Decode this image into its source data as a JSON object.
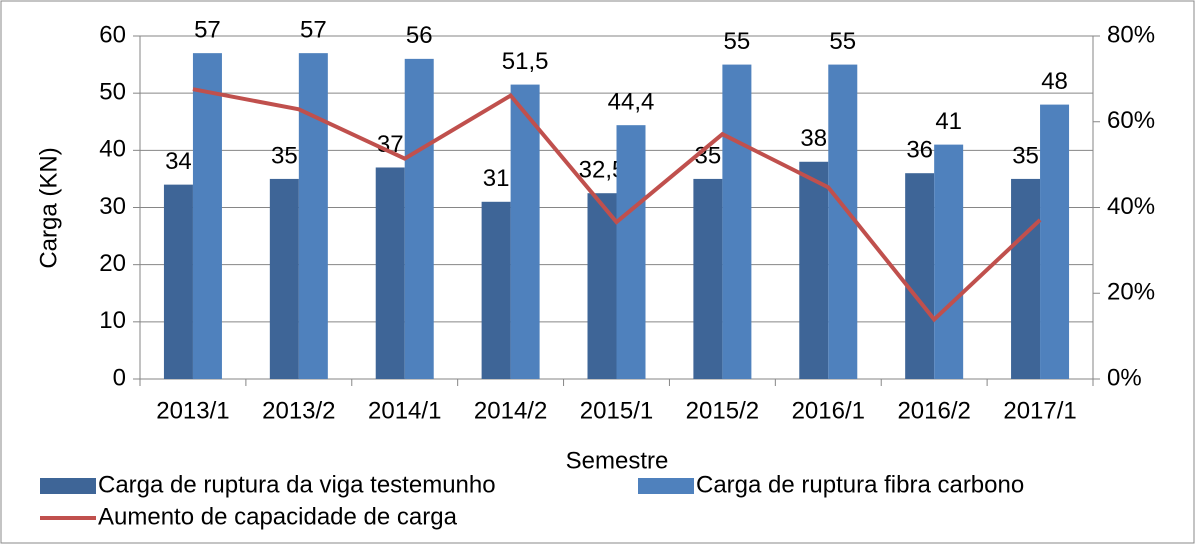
{
  "chart_data": {
    "type": "bar",
    "x_label": "Semestre",
    "y_label": "Carga (KN)",
    "categories": [
      "2013/1",
      "2013/2",
      "2014/1",
      "2014/2",
      "2015/1",
      "2015/2",
      "2016/1",
      "2016/2",
      "2017/1"
    ],
    "series": [
      {
        "name": "Carga de ruptura da viga testemunho",
        "color": "#3e6597",
        "type": "bar",
        "values": [
          34,
          35,
          37,
          31,
          32.5,
          35,
          38,
          36,
          35
        ],
        "value_labels": [
          "34",
          "35",
          "37",
          "31",
          "32,5",
          "35",
          "38",
          "36",
          "35"
        ]
      },
      {
        "name": "Carga de ruptura fibra carbono",
        "color": "#4f81bd",
        "type": "bar",
        "values": [
          57,
          57,
          56,
          51.5,
          44.4,
          55,
          55,
          41,
          48
        ],
        "value_labels": [
          "57",
          "57",
          "56",
          "51,5",
          "44,4",
          "55",
          "55",
          "41",
          "48"
        ]
      },
      {
        "name": "Aumento de capacidade de carga",
        "color": "#c0504d",
        "type": "line",
        "axis": "y2",
        "values": [
          67.6,
          62.9,
          51.4,
          66.1,
          36.6,
          57.1,
          44.7,
          13.9,
          37.1
        ]
      }
    ],
    "ylim": [
      0,
      60
    ],
    "yticks": [
      0,
      10,
      20,
      30,
      40,
      50,
      60
    ],
    "y2lim": [
      0,
      80
    ],
    "y2ticks": [
      {
        "value": 0,
        "label": "0%"
      },
      {
        "value": 20,
        "label": "20%"
      },
      {
        "value": 40,
        "label": "40%"
      },
      {
        "value": 60,
        "label": "60%"
      },
      {
        "value": 80,
        "label": "80%"
      }
    ],
    "grid": true,
    "legend": "bottom"
  }
}
